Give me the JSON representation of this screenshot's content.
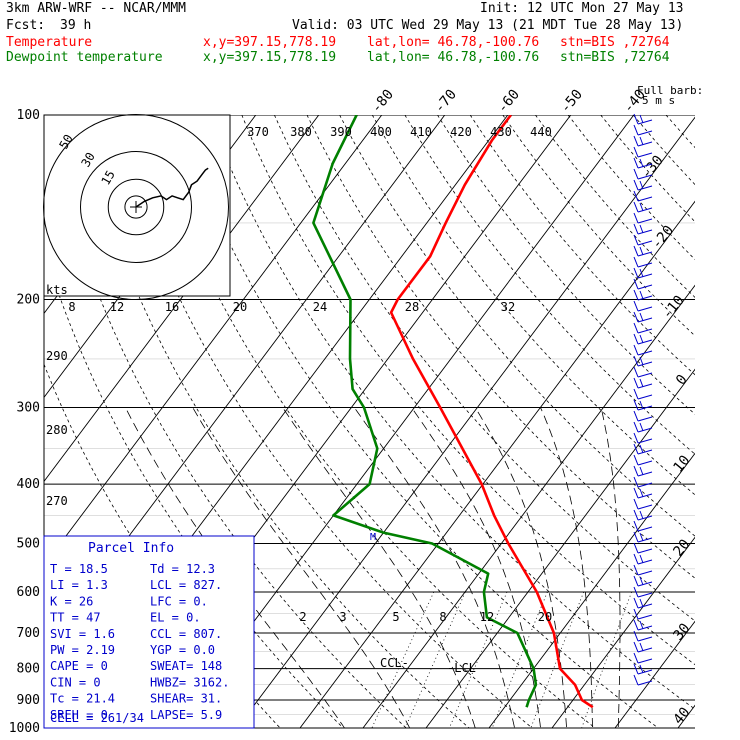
{
  "header": {
    "model": "3km ARW-WRF -- NCAR/MMM",
    "init": "Init: 12 UTC Mon 27 May 13",
    "fcst_label": "Fcst:",
    "fcst_value": "39 h",
    "valid": "Valid: 03 UTC Wed 29 May 13 (21 MDT Tue 28 May 13)",
    "temp_label": "Temperature",
    "dew_label": "Dewpoint temperature",
    "xy": "x,y=397.15,778.19",
    "latlon": "lat,lon= 46.78,-100.76",
    "stn": "stn=BIS ,72764"
  },
  "colors": {
    "temperature": "#ff0000",
    "dewpoint": "#008000",
    "wind": "#0000cc",
    "parcel_box": "#0000cc"
  },
  "chart_data": {
    "type": "line",
    "title": "",
    "xlabel": "",
    "ylabel": "",
    "y_scale": "log",
    "ylim": [
      1000,
      100
    ],
    "pressure_ticks": [
      100,
      200,
      300,
      400,
      500,
      600,
      700,
      800,
      900,
      1000
    ],
    "pressure_labels": [
      "100",
      "200",
      "300",
      "400",
      "500",
      "600",
      "700",
      "800",
      "900",
      "1000"
    ],
    "temperature_ticks_top": [
      "-80",
      "-70",
      "-60",
      "-50",
      "-40"
    ],
    "temperature_ticks_right": [
      "-30",
      "-20",
      "-10",
      "0",
      "10",
      "20",
      "30",
      "40"
    ],
    "mixing_ratio_labels": [
      "2",
      "3",
      "5",
      "8",
      "12",
      "20"
    ],
    "theta_labels": [
      "290",
      "280",
      "270"
    ],
    "wind_barb_label": "Full barb:",
    "wind_barb_units": "5 m s",
    "series": [
      {
        "name": "Temperature",
        "color": "#ff0000",
        "points": [
          {
            "p": 925,
            "t": 24.0
          },
          {
            "p": 900,
            "t": 21.4
          },
          {
            "p": 850,
            "t": 18.5
          },
          {
            "p": 800,
            "t": 14.2
          },
          {
            "p": 700,
            "t": 9.0
          },
          {
            "p": 600,
            "t": 1.4
          },
          {
            "p": 500,
            "t": -8.9
          },
          {
            "p": 450,
            "t": -14.5
          },
          {
            "p": 400,
            "t": -20.2
          },
          {
            "p": 300,
            "t": -35.9
          },
          {
            "p": 250,
            "t": -46.0
          },
          {
            "p": 210,
            "t": -55.0
          },
          {
            "p": 200,
            "t": -55.5
          },
          {
            "p": 170,
            "t": -55.5
          },
          {
            "p": 150,
            "t": -57.0
          },
          {
            "p": 130,
            "t": -58.5
          },
          {
            "p": 110,
            "t": -59.5
          },
          {
            "p": 100,
            "t": -59.5
          }
        ]
      },
      {
        "name": "Dewpoint temperature",
        "color": "#008000",
        "points": [
          {
            "p": 925,
            "t": 13.5
          },
          {
            "p": 900,
            "t": 13.0
          },
          {
            "p": 850,
            "t": 12.3
          },
          {
            "p": 800,
            "t": 10.0
          },
          {
            "p": 700,
            "t": 3.2
          },
          {
            "p": 660,
            "t": -3.5
          },
          {
            "p": 600,
            "t": -7.0
          },
          {
            "p": 560,
            "t": -8.5
          },
          {
            "p": 500,
            "t": -21.0
          },
          {
            "p": 480,
            "t": -30.0
          },
          {
            "p": 450,
            "t": -40.0
          },
          {
            "p": 400,
            "t": -38.0
          },
          {
            "p": 350,
            "t": -41.0
          },
          {
            "p": 300,
            "t": -48.0
          },
          {
            "p": 280,
            "t": -52.0
          },
          {
            "p": 250,
            "t": -56.0
          },
          {
            "p": 200,
            "t": -63.0
          },
          {
            "p": 150,
            "t": -78.0
          },
          {
            "p": 120,
            "t": -82.0
          },
          {
            "p": 100,
            "t": -84.0
          }
        ]
      }
    ],
    "hodograph": {
      "rings_kts": [
        15,
        30,
        50
      ],
      "ring_labels": [
        "15",
        "30",
        "50"
      ],
      "scale_label": "kts",
      "scale_ticks": [
        "8",
        "12",
        "16",
        "20",
        "24",
        "28",
        "32"
      ],
      "top_ticks": [
        "370",
        "380",
        "390",
        "400",
        "410",
        "420",
        "430",
        "440"
      ],
      "points_uv": [
        [
          0,
          0
        ],
        [
          3,
          3
        ],
        [
          6,
          5
        ],
        [
          9,
          6
        ],
        [
          11,
          4
        ],
        [
          13,
          6
        ],
        [
          15,
          5
        ],
        [
          17,
          4
        ],
        [
          19,
          8
        ],
        [
          20,
          12
        ],
        [
          22,
          14
        ],
        [
          23,
          16
        ],
        [
          24,
          18
        ],
        [
          25,
          20
        ],
        [
          26,
          21
        ]
      ]
    },
    "markers": {
      "ccl_label": "CCL",
      "lcl_label": "LCL",
      "m_label": "M"
    }
  },
  "parcel_info": {
    "title": "Parcel Info",
    "rows": [
      [
        "T  =    18.5",
        "Td =  12.3"
      ],
      [
        "LI =     1.3",
        "LCL =  827."
      ],
      [
        "K  =      26",
        "LFC =    0."
      ],
      [
        "TT =      47",
        "EL  =    0."
      ],
      [
        "SVI =    1.6",
        "CCL =  807."
      ],
      [
        "PW =    2.19",
        "YGP =   0.0"
      ],
      [
        "CAPE =     0",
        "SWEAT=  148"
      ],
      [
        "CIN =      0",
        "HWBZ= 3162."
      ],
      [
        "Tc =    21.4",
        "SHEAR=  31."
      ],
      [
        "SREH =     0",
        "LAPSE=  5.9"
      ]
    ],
    "cell": "CELL = 261/34"
  }
}
